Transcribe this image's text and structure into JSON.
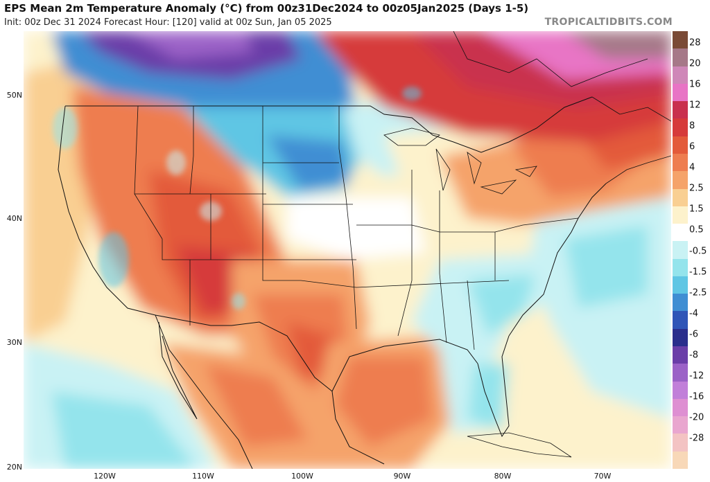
{
  "header": {
    "title": "EPS Mean 2m Temperature Anomaly (°C) from 00z31Dec2024 to 00z05Jan2025 (Days 1-5)",
    "subtitle": "Init: 00z Dec 31 2024   Forecast Hour: [120]   valid at 00z Sun, Jan 05 2025",
    "brand": "TROPICALTIDBITS.COM"
  },
  "axes": {
    "lat_labels": [
      "50N",
      "40N",
      "30N",
      "20N"
    ],
    "lon_labels": [
      "120W",
      "110W",
      "100W",
      "90W",
      "80W",
      "70W"
    ]
  },
  "colorbar": {
    "labels": [
      "28",
      "20",
      "16",
      "12",
      "8",
      "6",
      "4",
      "2.5",
      "1.5",
      "0.5",
      "-0.5",
      "-1.5",
      "-2.5",
      "-4",
      "-6",
      "-8",
      "-12",
      "-16",
      "-20",
      "-28"
    ],
    "colors": [
      "#7a4a36",
      "#a67888",
      "#cf87b8",
      "#e874c5",
      "#c9304e",
      "#d63a3a",
      "#e35a3a",
      "#ee7d50",
      "#f5a36a",
      "#f9cf92",
      "#fdf2cc",
      "#ffffff",
      "#c9f2f4",
      "#94e4ec",
      "#5fc6e4",
      "#3f8ed3",
      "#2f55b7",
      "#2a2e8c",
      "#6a3ea8",
      "#9b62c7",
      "#c17fd9",
      "#de8fd2",
      "#e9a6cf",
      "#f3c3c3",
      "#f8d8b8"
    ]
  },
  "anomaly_legend_colors": {
    "strong_warm": "#c9304e",
    "warm": "#ee7d50",
    "mild_warm": "#f9cf92",
    "neutral": "#ffffff",
    "mild_cold": "#94e4ec",
    "cold": "#3f8ed3",
    "very_cold": "#6a3ea8"
  }
}
